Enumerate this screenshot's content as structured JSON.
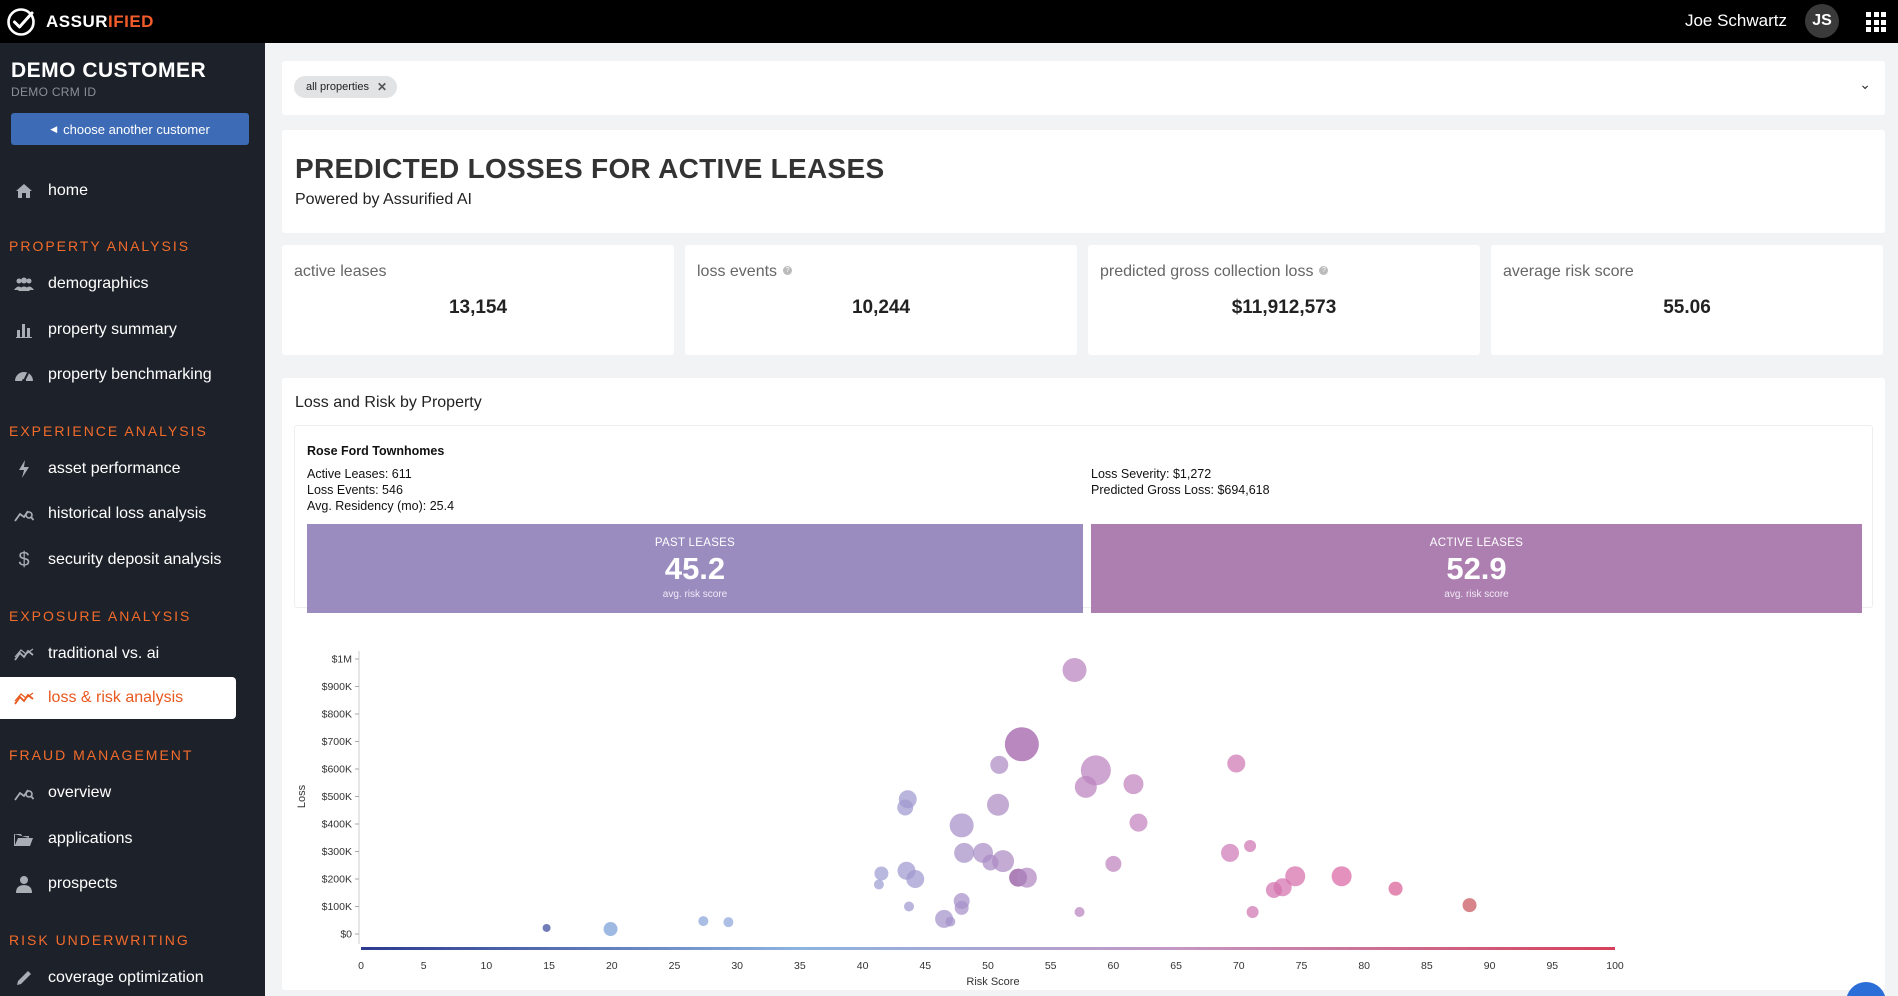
{
  "topbar": {
    "brand_primary": "ASSUR",
    "brand_accent": "IFIED",
    "user_name": "Joe Schwartz",
    "user_initials": "JS"
  },
  "sidebar": {
    "customer_name": "DEMO CUSTOMER",
    "customer_id": "DEMO CRM ID",
    "choose_label": "choose another customer",
    "home": "home",
    "sections": [
      {
        "title": "PROPERTY ANALYSIS",
        "items": [
          "demographics",
          "property summary",
          "property benchmarking"
        ]
      },
      {
        "title": "EXPERIENCE ANALYSIS",
        "items": [
          "asset performance",
          "historical loss analysis",
          "security deposit analysis"
        ]
      },
      {
        "title": "EXPOSURE ANALYSIS",
        "items": [
          "traditional vs. ai",
          "loss & risk analysis"
        ]
      },
      {
        "title": "FRAUD MANAGEMENT",
        "items": [
          "overview",
          "applications",
          "prospects"
        ]
      },
      {
        "title": "RISK UNDERWRITING",
        "items": [
          "coverage optimization"
        ]
      }
    ],
    "active_item": "loss & risk analysis"
  },
  "filter": {
    "chip_label": "all properties"
  },
  "header": {
    "title": "PREDICTED LOSSES FOR ACTIVE LEASES",
    "subtitle": "Powered by Assurified AI"
  },
  "stats": [
    {
      "label": "active leases",
      "value": "13,154"
    },
    {
      "label": "loss events",
      "value": "10,244"
    },
    {
      "label": "predicted gross collection loss",
      "value": "$11,912,573"
    },
    {
      "label": "average risk score",
      "value": "55.06"
    }
  ],
  "colors": {
    "accent": "#f26b2b",
    "sidebar_bg": "#1d222a",
    "button_blue": "#3e6bb5",
    "past_box": "#9b8cc0",
    "active_box": "#ad7fb0"
  },
  "chart": {
    "title": "Loss and Risk by Property",
    "property": {
      "name": "Rose Ford Townhomes",
      "active_leases": "Active Leases: 611",
      "loss_events": "Loss Events: 546",
      "avg_residency": "Avg. Residency (mo): 25.4",
      "loss_severity": "Loss Severity: $1,272",
      "predicted_gross_loss": "Predicted Gross Loss: $694,618"
    },
    "past": {
      "label": "PAST LEASES",
      "value": "45.2",
      "sub": "avg. risk score"
    },
    "active": {
      "label": "ACTIVE LEASES",
      "value": "52.9",
      "sub": "avg. risk score"
    }
  },
  "chart_data": {
    "type": "scatter",
    "xlabel": "Risk Score",
    "ylabel": "Loss",
    "xlim": [
      0,
      100
    ],
    "ylim": [
      0,
      1000000
    ],
    "x_ticks": [
      0,
      5,
      10,
      15,
      20,
      25,
      30,
      35,
      40,
      45,
      50,
      55,
      60,
      65,
      70,
      75,
      80,
      85,
      90,
      95,
      100
    ],
    "y_ticks": [
      {
        "value": 0,
        "label": "$0"
      },
      {
        "value": 100000,
        "label": "$100K"
      },
      {
        "value": 200000,
        "label": "$200K"
      },
      {
        "value": 300000,
        "label": "$300K"
      },
      {
        "value": 400000,
        "label": "$400K"
      },
      {
        "value": 500000,
        "label": "$500K"
      },
      {
        "value": 600000,
        "label": "$600K"
      },
      {
        "value": 700000,
        "label": "$700K"
      },
      {
        "value": 800000,
        "label": "$800K"
      },
      {
        "value": 900000,
        "label": "$900K"
      },
      {
        "value": 1000000,
        "label": "$1M"
      }
    ],
    "points": [
      {
        "x": 14.8,
        "y": 22000,
        "r": 4
      },
      {
        "x": 19.9,
        "y": 18000,
        "r": 7
      },
      {
        "x": 27.3,
        "y": 47000,
        "r": 5
      },
      {
        "x": 29.3,
        "y": 43000,
        "r": 5
      },
      {
        "x": 41.5,
        "y": 220000,
        "r": 7
      },
      {
        "x": 41.3,
        "y": 180000,
        "r": 5
      },
      {
        "x": 43.6,
        "y": 490000,
        "r": 9
      },
      {
        "x": 43.4,
        "y": 460000,
        "r": 8
      },
      {
        "x": 43.5,
        "y": 230000,
        "r": 9
      },
      {
        "x": 44.2,
        "y": 200000,
        "r": 9
      },
      {
        "x": 43.7,
        "y": 100000,
        "r": 5
      },
      {
        "x": 46.5,
        "y": 55000,
        "r": 9
      },
      {
        "x": 47.0,
        "y": 45000,
        "r": 5
      },
      {
        "x": 47.9,
        "y": 395000,
        "r": 12
      },
      {
        "x": 48.1,
        "y": 295000,
        "r": 10
      },
      {
        "x": 47.9,
        "y": 120000,
        "r": 8
      },
      {
        "x": 47.9,
        "y": 95000,
        "r": 7
      },
      {
        "x": 49.6,
        "y": 295000,
        "r": 10
      },
      {
        "x": 50.2,
        "y": 260000,
        "r": 8
      },
      {
        "x": 50.8,
        "y": 470000,
        "r": 11
      },
      {
        "x": 50.9,
        "y": 615000,
        "r": 9
      },
      {
        "x": 51.2,
        "y": 265000,
        "r": 11
      },
      {
        "x": 52.4,
        "y": 205000,
        "r": 9
      },
      {
        "x": 53.1,
        "y": 205000,
        "r": 10
      },
      {
        "x": 52.7,
        "y": 690000,
        "r": 17
      },
      {
        "x": 56.9,
        "y": 960000,
        "r": 12
      },
      {
        "x": 57.3,
        "y": 80000,
        "r": 5
      },
      {
        "x": 57.8,
        "y": 535000,
        "r": 11
      },
      {
        "x": 58.6,
        "y": 595000,
        "r": 15
      },
      {
        "x": 60.0,
        "y": 255000,
        "r": 8
      },
      {
        "x": 61.6,
        "y": 545000,
        "r": 10
      },
      {
        "x": 62.0,
        "y": 405000,
        "r": 9
      },
      {
        "x": 69.3,
        "y": 295000,
        "r": 9
      },
      {
        "x": 69.8,
        "y": 620000,
        "r": 9
      },
      {
        "x": 70.9,
        "y": 320000,
        "r": 6
      },
      {
        "x": 71.1,
        "y": 80000,
        "r": 6
      },
      {
        "x": 72.8,
        "y": 160000,
        "r": 8
      },
      {
        "x": 73.5,
        "y": 170000,
        "r": 9
      },
      {
        "x": 74.5,
        "y": 210000,
        "r": 10
      },
      {
        "x": 78.2,
        "y": 210000,
        "r": 10
      },
      {
        "x": 82.5,
        "y": 165000,
        "r": 7
      },
      {
        "x": 88.4,
        "y": 105000,
        "r": 7
      }
    ]
  }
}
